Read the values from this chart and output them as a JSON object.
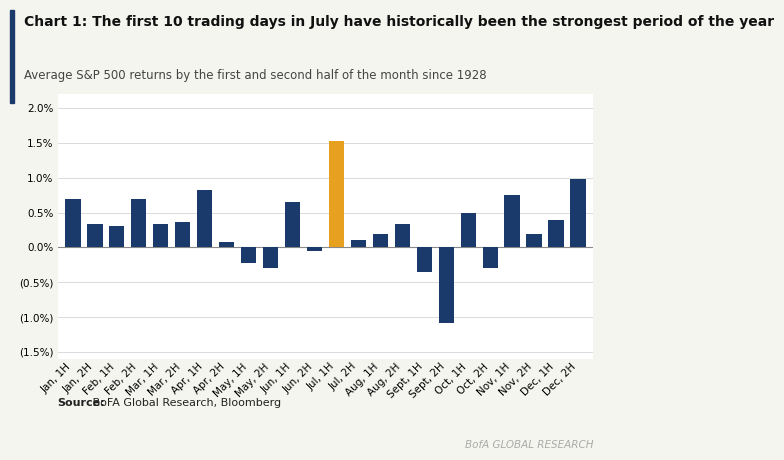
{
  "title_bold": "Chart 1: The first 10 trading days in July have historically been the strongest period of the year",
  "subtitle": "Average S&P 500 returns by the first and second half of the month since 1928",
  "source_bold": "Source:",
  "source_rest": " BoFA Global Research, Bloomberg",
  "watermark": "BofA GLOBAL RESEARCH",
  "categories": [
    "Jan, 1H",
    "Jan, 2H",
    "Feb, 1H",
    "Feb, 2H",
    "Mar, 1H",
    "Mar, 2H",
    "Apr, 1H",
    "Apr, 2H",
    "May, 1H",
    "May, 2H",
    "Jun, 1H",
    "Jun, 2H",
    "Jul, 1H",
    "Jul, 2H",
    "Aug, 1H",
    "Aug, 2H",
    "Sept, 1H",
    "Sept, 2H",
    "Oct, 1H",
    "Oct, 2H",
    "Nov, 1H",
    "Nov, 2H",
    "Dec, 1H",
    "Dec, 2H"
  ],
  "values": [
    0.007,
    0.0033,
    0.0031,
    0.0069,
    0.0033,
    0.0037,
    0.0083,
    0.0008,
    -0.0022,
    -0.003,
    0.0065,
    -0.0005,
    0.0153,
    0.001,
    0.002,
    0.0033,
    -0.0035,
    -0.0108,
    0.005,
    -0.003,
    0.0075,
    0.002,
    0.004,
    0.0098
  ],
  "bar_colors": [
    "#1a3a6b",
    "#1a3a6b",
    "#1a3a6b",
    "#1a3a6b",
    "#1a3a6b",
    "#1a3a6b",
    "#1a3a6b",
    "#1a3a6b",
    "#1a3a6b",
    "#1a3a6b",
    "#1a3a6b",
    "#1a3a6b",
    "#e8a020",
    "#1a3a6b",
    "#1a3a6b",
    "#1a3a6b",
    "#1a3a6b",
    "#1a3a6b",
    "#1a3a6b",
    "#1a3a6b",
    "#1a3a6b",
    "#1a3a6b",
    "#1a3a6b",
    "#1a3a6b"
  ],
  "ylim": [
    -0.016,
    0.022
  ],
  "yticks": [
    -0.015,
    -0.01,
    -0.005,
    0.0,
    0.005,
    0.01,
    0.015,
    0.02
  ],
  "background_color": "#f5f5f0",
  "bar_background": "#ffffff",
  "accent_color": "#1a3a6b",
  "title_fontsize": 10,
  "subtitle_fontsize": 8.5,
  "tick_fontsize": 7.5,
  "source_fontsize": 8
}
